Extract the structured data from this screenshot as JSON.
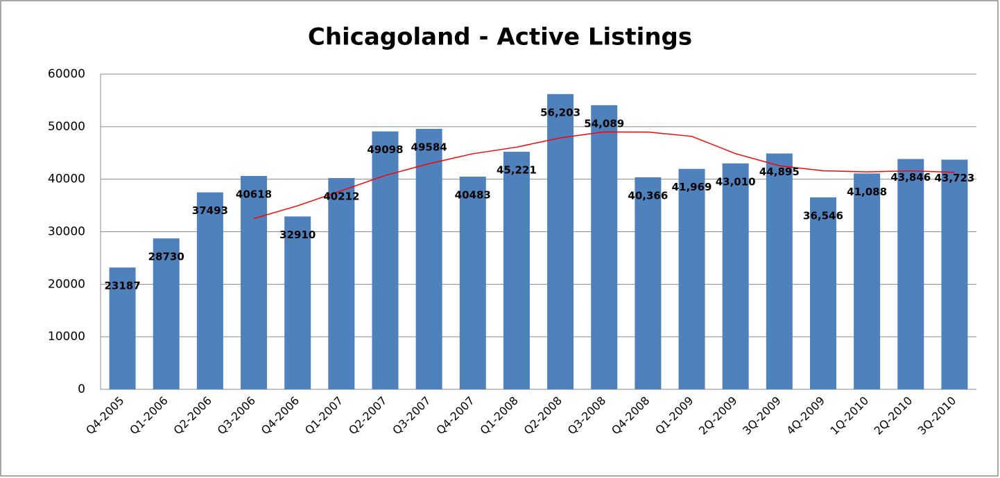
{
  "chart_data": {
    "type": "bar",
    "title": "Chicagoland - Active Listings",
    "categories": [
      "Q4-2005",
      "Q1-2006",
      "Q2-2006",
      "Q3-2006",
      "Q4-2006",
      "Q1-2007",
      "Q2-2007",
      "Q3-2007",
      "Q4-2007",
      "Q1-2008",
      "Q2-2008",
      "Q3-2008",
      "Q4-2008",
      "Q1-2009",
      "2Q-2009",
      "3Q-2009",
      "4Q-2009",
      "1Q-2010",
      "2Q-2010",
      "3Q-2010"
    ],
    "values": [
      23187,
      28730,
      37493,
      40618,
      32910,
      40212,
      49098,
      49584,
      40483,
      45221,
      56203,
      54089,
      40366,
      41969,
      43010,
      44895,
      36546,
      41088,
      43846,
      43723
    ],
    "value_labels": [
      "23187",
      "28730",
      "37493",
      "40618",
      "32910",
      "40212",
      "49098",
      "49584",
      "40483",
      "45,221",
      "56,203",
      "54,089",
      "40,366",
      "41,969",
      "43,010",
      "44,895",
      "36,546",
      "41,088",
      "43,846",
      "43,723"
    ],
    "color": "#4f81bd",
    "trend_line": {
      "color": "#ff0000",
      "values": [
        null,
        null,
        null,
        32507,
        34938,
        37808,
        40710,
        42951,
        44844,
        46097,
        47873,
        48999,
        48970,
        48157,
        44859,
        42560,
        41605,
        41385,
        41594,
        41301
      ]
    },
    "ylim": [
      0,
      60000
    ],
    "yticks": [
      0,
      10000,
      20000,
      30000,
      40000,
      50000,
      60000
    ],
    "grid": true
  }
}
